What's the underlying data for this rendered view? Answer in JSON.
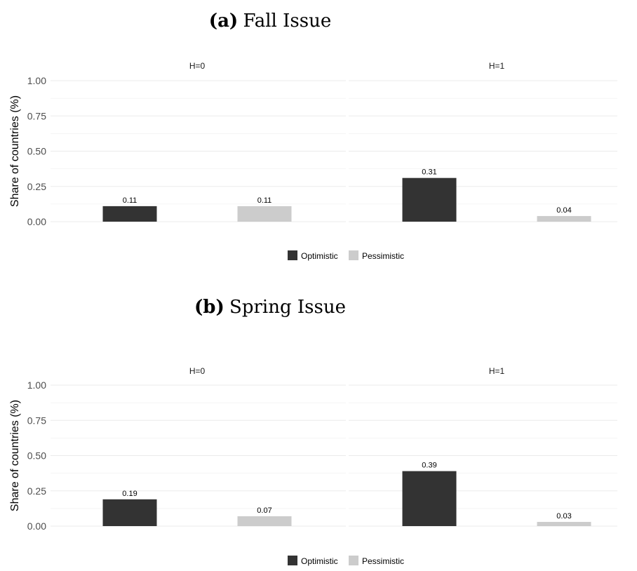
{
  "legend": {
    "position": "bottom",
    "items": [
      {
        "label": "Optimistic",
        "color": "#333333"
      },
      {
        "label": "Pessimistic",
        "color": "#cccccc"
      }
    ]
  },
  "colors": {
    "optimistic": "#333333",
    "pessimistic": "#cccccc",
    "grid": "#ebebeb",
    "text": "#4d4d4d"
  },
  "chart_data": [
    {
      "type": "bar",
      "title_prefix": "(a)",
      "title": "Fall Issue",
      "ylabel": "Share of countries (%)",
      "xlabel": "",
      "ylim": [
        0,
        1
      ],
      "yticks": [
        "0.00",
        "0.25",
        "0.50",
        "0.75",
        "1.00"
      ],
      "grid": true,
      "facets": [
        {
          "label": "H=0",
          "categories": [
            "Optimistic",
            "Pessimistic"
          ],
          "values": [
            0.11,
            0.11
          ],
          "value_labels": [
            "0.11",
            "0.11"
          ]
        },
        {
          "label": "H=1",
          "categories": [
            "Optimistic",
            "Pessimistic"
          ],
          "values": [
            0.31,
            0.04
          ],
          "value_labels": [
            "0.31",
            "0.04"
          ]
        }
      ]
    },
    {
      "type": "bar",
      "title_prefix": "(b)",
      "title": "Spring Issue",
      "ylabel": "Share of countries (%)",
      "xlabel": "",
      "ylim": [
        0,
        1
      ],
      "yticks": [
        "0.00",
        "0.25",
        "0.50",
        "0.75",
        "1.00"
      ],
      "grid": true,
      "facets": [
        {
          "label": "H=0",
          "categories": [
            "Optimistic",
            "Pessimistic"
          ],
          "values": [
            0.19,
            0.07
          ],
          "value_labels": [
            "0.19",
            "0.07"
          ]
        },
        {
          "label": "H=1",
          "categories": [
            "Optimistic",
            "Pessimistic"
          ],
          "values": [
            0.39,
            0.03
          ],
          "value_labels": [
            "0.39",
            "0.03"
          ]
        }
      ]
    }
  ]
}
